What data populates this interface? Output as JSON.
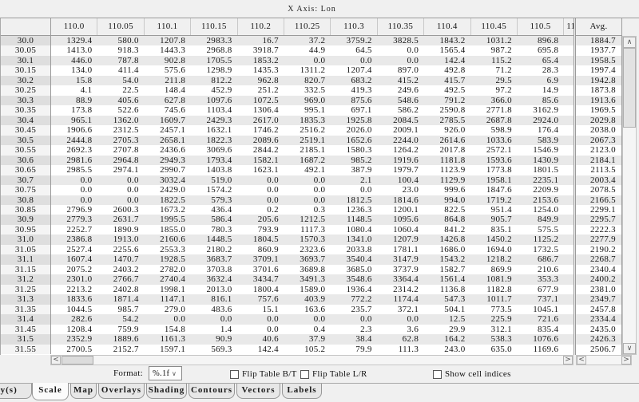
{
  "window": {
    "background": "#f0f0f0",
    "stripe_color": "#e9e9e9",
    "border_color": "#9b9b9b"
  },
  "axis_bar": {
    "label": "X Axis: Lon"
  },
  "table": {
    "col_headers": [
      "110.0",
      "110.05",
      "110.1",
      "110.15",
      "110.2",
      "110.25",
      "110.3",
      "110.35",
      "110.4",
      "110.45",
      "110.5",
      "11"
    ],
    "avg_header": "Avg.",
    "rows": [
      {
        "lat": "30.0",
        "values": [
          "1329.4",
          "580.0",
          "1207.8",
          "2983.3",
          "16.7",
          "37.2",
          "3759.2",
          "3828.5",
          "1843.2",
          "1031.2",
          "896.8"
        ],
        "avg": "1884.7"
      },
      {
        "lat": "30.05",
        "values": [
          "1413.0",
          "918.3",
          "1443.3",
          "2968.8",
          "3918.7",
          "44.9",
          "64.5",
          "0.0",
          "1565.4",
          "987.2",
          "695.8"
        ],
        "avg": "1937.7"
      },
      {
        "lat": "30.1",
        "values": [
          "446.0",
          "787.8",
          "902.8",
          "1705.5",
          "1853.2",
          "0.0",
          "0.0",
          "0.0",
          "142.4",
          "115.2",
          "65.4"
        ],
        "avg": "1958.5"
      },
      {
        "lat": "30.15",
        "values": [
          "134.0",
          "411.4",
          "575.6",
          "1298.9",
          "1435.3",
          "1311.2",
          "1207.4",
          "897.0",
          "492.8",
          "71.2",
          "28.3"
        ],
        "avg": "1997.4"
      },
      {
        "lat": "30.2",
        "values": [
          "15.8",
          "54.0",
          "211.8",
          "812.2",
          "962.8",
          "820.7",
          "683.2",
          "415.2",
          "415.7",
          "29.5",
          "6.9"
        ],
        "avg": "1942.8"
      },
      {
        "lat": "30.25",
        "values": [
          "4.1",
          "22.5",
          "148.4",
          "452.9",
          "251.2",
          "332.5",
          "419.3",
          "249.6",
          "492.5",
          "97.2",
          "14.9"
        ],
        "avg": "1873.8"
      },
      {
        "lat": "30.3",
        "values": [
          "88.9",
          "405.6",
          "627.8",
          "1097.6",
          "1072.5",
          "969.0",
          "875.6",
          "548.6",
          "791.2",
          "366.0",
          "85.6"
        ],
        "avg": "1913.6"
      },
      {
        "lat": "30.35",
        "values": [
          "173.8",
          "522.6",
          "745.6",
          "1103.4",
          "1306.4",
          "995.1",
          "697.1",
          "586.2",
          "2590.8",
          "2771.8",
          "3162.9"
        ],
        "avg": "1969.5"
      },
      {
        "lat": "30.4",
        "values": [
          "965.1",
          "1362.0",
          "1609.7",
          "2429.3",
          "2617.0",
          "1835.3",
          "1925.8",
          "2084.5",
          "2785.5",
          "2687.8",
          "2924.0"
        ],
        "avg": "2029.8"
      },
      {
        "lat": "30.45",
        "values": [
          "1906.6",
          "2312.5",
          "2457.1",
          "1632.1",
          "1746.2",
          "2516.2",
          "2026.0",
          "2009.1",
          "926.0",
          "598.9",
          "176.4"
        ],
        "avg": "2038.0"
      },
      {
        "lat": "30.5",
        "values": [
          "2444.8",
          "2705.3",
          "2658.1",
          "1822.3",
          "2089.6",
          "2519.1",
          "1652.6",
          "2244.0",
          "2614.6",
          "1033.6",
          "583.9"
        ],
        "avg": "2067.3"
      },
      {
        "lat": "30.55",
        "values": [
          "2692.3",
          "2707.8",
          "2436.6",
          "3069.6",
          "2844.2",
          "2185.1",
          "1580.3",
          "1264.2",
          "2017.8",
          "2572.1",
          "1546.9"
        ],
        "avg": "2123.0"
      },
      {
        "lat": "30.6",
        "values": [
          "2981.6",
          "2964.8",
          "2949.3",
          "1793.4",
          "1582.1",
          "1687.2",
          "985.2",
          "1919.6",
          "1181.8",
          "1593.6",
          "1430.9"
        ],
        "avg": "2184.1"
      },
      {
        "lat": "30.65",
        "values": [
          "2985.5",
          "2974.1",
          "2990.7",
          "1403.8",
          "1623.1",
          "492.1",
          "387.9",
          "1979.7",
          "1123.9",
          "1773.8",
          "1801.5"
        ],
        "avg": "2113.5"
      },
      {
        "lat": "30.7",
        "values": [
          "0.0",
          "0.0",
          "3032.4",
          "519.0",
          "0.0",
          "0.0",
          "2.1",
          "100.4",
          "1129.9",
          "1958.1",
          "2235.1"
        ],
        "avg": "2003.4"
      },
      {
        "lat": "30.75",
        "values": [
          "0.0",
          "0.0",
          "2429.0",
          "1574.2",
          "0.0",
          "0.0",
          "0.0",
          "23.0",
          "999.6",
          "1847.6",
          "2209.9"
        ],
        "avg": "2078.5"
      },
      {
        "lat": "30.8",
        "values": [
          "0.0",
          "0.0",
          "1822.5",
          "579.3",
          "0.0",
          "0.0",
          "1812.5",
          "1814.6",
          "994.0",
          "1719.2",
          "2153.6"
        ],
        "avg": "2166.5"
      },
      {
        "lat": "30.85",
        "values": [
          "2796.9",
          "2600.3",
          "1673.2",
          "436.4",
          "0.2",
          "0.3",
          "1236.3",
          "1200.1",
          "822.5",
          "951.4",
          "1254.0"
        ],
        "avg": "2299.1"
      },
      {
        "lat": "30.9",
        "values": [
          "2779.3",
          "2631.7",
          "1995.5",
          "586.4",
          "205.6",
          "1212.5",
          "1148.5",
          "1095.6",
          "864.8",
          "905.7",
          "849.9"
        ],
        "avg": "2295.7"
      },
      {
        "lat": "30.95",
        "values": [
          "2252.7",
          "1890.9",
          "1855.0",
          "780.3",
          "793.9",
          "1117.3",
          "1080.4",
          "1060.4",
          "841.2",
          "835.1",
          "575.5"
        ],
        "avg": "2222.3"
      },
      {
        "lat": "31.0",
        "values": [
          "2386.8",
          "1913.0",
          "2160.6",
          "1448.5",
          "1804.5",
          "1570.3",
          "1341.0",
          "1207.9",
          "1426.8",
          "1450.2",
          "1125.2"
        ],
        "avg": "2277.9"
      },
      {
        "lat": "31.05",
        "values": [
          "2527.4",
          "2255.6",
          "2553.3",
          "2180.2",
          "860.9",
          "2323.6",
          "2033.8",
          "1781.1",
          "1686.0",
          "1694.0",
          "1732.5"
        ],
        "avg": "2190.2"
      },
      {
        "lat": "31.1",
        "values": [
          "1607.4",
          "1470.7",
          "1928.5",
          "3683.7",
          "3709.1",
          "3693.7",
          "3540.4",
          "3147.9",
          "1543.2",
          "1218.2",
          "686.7"
        ],
        "avg": "2268.7"
      },
      {
        "lat": "31.15",
        "values": [
          "2075.2",
          "2403.2",
          "2782.0",
          "3703.8",
          "3701.6",
          "3689.8",
          "3685.0",
          "3737.9",
          "1582.7",
          "869.9",
          "210.6"
        ],
        "avg": "2340.4"
      },
      {
        "lat": "31.2",
        "values": [
          "2301.0",
          "2766.7",
          "2740.4",
          "3632.4",
          "3434.7",
          "3491.3",
          "3548.6",
          "3364.4",
          "1561.4",
          "1081.9",
          "353.3"
        ],
        "avg": "2400.2"
      },
      {
        "lat": "31.25",
        "values": [
          "2213.2",
          "2402.8",
          "1998.1",
          "2013.0",
          "1800.4",
          "1589.0",
          "1936.4",
          "2314.2",
          "1136.8",
          "1182.8",
          "677.9"
        ],
        "avg": "2381.0"
      },
      {
        "lat": "31.3",
        "values": [
          "1833.6",
          "1871.4",
          "1147.1",
          "816.1",
          "757.6",
          "403.9",
          "772.2",
          "1174.4",
          "547.3",
          "1011.7",
          "737.1"
        ],
        "avg": "2349.7"
      },
      {
        "lat": "31.35",
        "values": [
          "1044.5",
          "985.7",
          "279.0",
          "483.6",
          "15.1",
          "163.6",
          "235.7",
          "372.1",
          "504.1",
          "773.5",
          "1045.1"
        ],
        "avg": "2457.8"
      },
      {
        "lat": "31.4",
        "values": [
          "282.6",
          "54.2",
          "0.0",
          "0.0",
          "0.0",
          "0.0",
          "0.0",
          "0.0",
          "12.5",
          "225.9",
          "721.6"
        ],
        "avg": "2334.4"
      },
      {
        "lat": "31.45",
        "values": [
          "1208.4",
          "759.9",
          "154.8",
          "1.4",
          "0.0",
          "0.4",
          "2.3",
          "3.6",
          "29.9",
          "312.1",
          "835.4"
        ],
        "avg": "2435.0"
      },
      {
        "lat": "31.5",
        "values": [
          "2352.9",
          "1889.6",
          "1161.3",
          "90.9",
          "40.6",
          "37.9",
          "38.4",
          "62.8",
          "164.2",
          "538.3",
          "1076.6"
        ],
        "avg": "2426.3"
      },
      {
        "lat": "31.55",
        "values": [
          "2700.5",
          "2152.7",
          "1597.1",
          "569.3",
          "142.4",
          "105.2",
          "79.9",
          "111.3",
          "243.0",
          "635.0",
          "1169.6"
        ],
        "avg": "2506.7"
      }
    ]
  },
  "icons": {
    "up": "∧",
    "down": "∨",
    "left": "<",
    "right": ">",
    "dropdown": "∨"
  },
  "controls": {
    "format_label": "Format:",
    "format_value": "%.1f",
    "flip_bt": {
      "label": "Flip Table B/T",
      "checked": false
    },
    "flip_lr": {
      "label": "Flip Table L/R",
      "checked": false
    },
    "show_indices": {
      "label": "Show cell indices",
      "checked": false
    }
  },
  "tabs": [
    {
      "label": "ray(s)",
      "selected": false
    },
    {
      "label": "Scale",
      "selected": true
    },
    {
      "label": "Map",
      "selected": false
    },
    {
      "label": "Overlays",
      "selected": false
    },
    {
      "label": "Shading",
      "selected": false
    },
    {
      "label": "Contours",
      "selected": false
    },
    {
      "label": "Vectors",
      "selected": false
    },
    {
      "label": "Labels",
      "selected": false
    }
  ]
}
